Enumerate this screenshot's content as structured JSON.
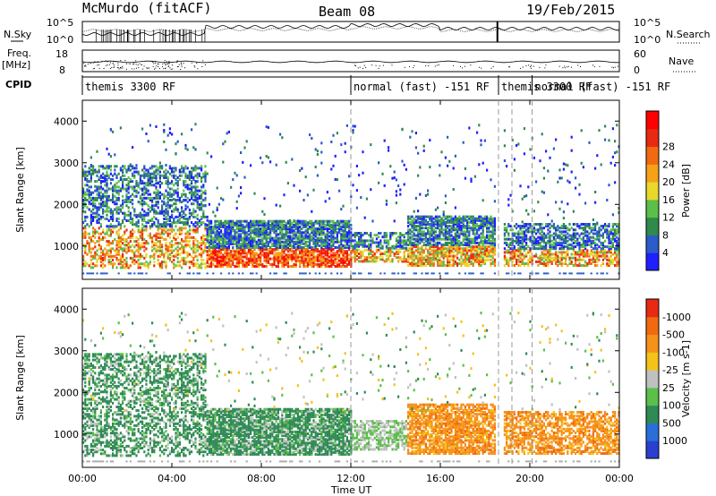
{
  "header": {
    "station": "McMurdo (fitACF)",
    "beam": "Beam 08",
    "date": "19/Feb/2015"
  },
  "side_labels": {
    "nsky": "N.Sky",
    "nsearch": "N.Search",
    "freq": "Freq.",
    "mhz": "[MHz]",
    "nave": "Nave",
    "cpid": "CPID",
    "nsky_ticks": [
      "10^5",
      "10^0"
    ],
    "nsearch_ticks": [
      "10^5",
      "10^0"
    ],
    "freq_ticks": [
      "18",
      "8"
    ],
    "nave_ticks": [
      "60",
      "0"
    ]
  },
  "cpid_modes": [
    {
      "start_hour": 0,
      "label": "themis 3300 RF"
    },
    {
      "start_hour": 12,
      "label": "normal (fast) -151 RF"
    },
    {
      "start_hour": 18.6,
      "label": "themis 3300 RF"
    },
    {
      "start_hour": 20.1,
      "label": "normal (fast) -151 RF"
    }
  ],
  "chart_data": [
    {
      "type": "heatmap",
      "name": "power-panel",
      "xlabel": "Time UT",
      "ylabel": "Slant Range [km]",
      "xlim": [
        0,
        24
      ],
      "ylim": [
        200,
        4500
      ],
      "x_ticks": [
        "00:00",
        "04:00",
        "08:00",
        "12:00",
        "16:00",
        "20:00",
        "00:00"
      ],
      "y_ticks": [
        1000,
        2000,
        3000,
        4000
      ],
      "colorbar": {
        "label": "Power [dB]",
        "ticks": [
          4,
          8,
          12,
          16,
          20,
          24,
          28
        ],
        "colors": [
          "#1f1fff",
          "#2a5cc9",
          "#2f8a4c",
          "#5bbf4a",
          "#e8d829",
          "#f5a21a",
          "#f26a10",
          "#e82a12",
          "#ff0000"
        ]
      },
      "dashed_time_markers_hours": [
        12,
        18.6,
        19.2,
        20.1
      ],
      "description_bands": [
        {
          "start": 0,
          "end": 5.5,
          "range_low": 500,
          "range_high": 2800
        },
        {
          "start": 5.5,
          "end": 12,
          "range_low": 500,
          "range_high": 1500
        },
        {
          "start": 12,
          "end": 18.5,
          "range_low": 600,
          "range_high": 1600
        },
        {
          "start": 19,
          "end": 24,
          "range_low": 500,
          "range_high": 1500
        }
      ]
    },
    {
      "type": "heatmap",
      "name": "velocity-panel",
      "xlabel": "Time UT",
      "ylabel": "Slant Range [km]",
      "xlim": [
        0,
        24
      ],
      "ylim": [
        200,
        4500
      ],
      "x_ticks": [
        "00:00",
        "04:00",
        "08:00",
        "12:00",
        "16:00",
        "20:00",
        "00:00"
      ],
      "y_ticks": [
        1000,
        2000,
        3000,
        4000
      ],
      "colorbar": {
        "label": "Velocity [m s-1]",
        "ticks": [
          "1000",
          "500",
          "100",
          "25",
          "-25",
          "-100",
          "-500",
          "-1000"
        ],
        "colors": [
          "#2a3fd0",
          "#2a6fd8",
          "#2f8a55",
          "#5bbf4a",
          "#c0c0c0",
          "#f5c21a",
          "#f5921a",
          "#f26a10",
          "#e82a12"
        ]
      },
      "dashed_time_markers_hours": [
        12,
        18.6,
        19.2,
        20.1
      ]
    }
  ]
}
